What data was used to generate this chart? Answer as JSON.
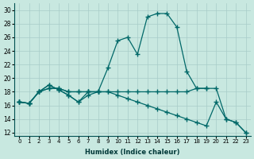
{
  "xlabel": "Humidex (Indice chaleur)",
  "ylabel": "",
  "background_color": "#c8e8e0",
  "grid_color": "#a8ccc8",
  "line_color": "#006868",
  "xlim": [
    -0.5,
    23.5
  ],
  "ylim": [
    11.5,
    31
  ],
  "yticks": [
    12,
    14,
    16,
    18,
    20,
    22,
    24,
    26,
    28,
    30
  ],
  "xticks": [
    0,
    1,
    2,
    3,
    4,
    5,
    6,
    7,
    8,
    9,
    10,
    11,
    12,
    13,
    14,
    15,
    16,
    17,
    18,
    19,
    20,
    21,
    22,
    23
  ],
  "line1": {
    "x": [
      0,
      1,
      2,
      3,
      4,
      5,
      6,
      7,
      8
    ],
    "y": [
      16.5,
      16.3,
      18.0,
      19.0,
      18.3,
      17.5,
      16.5,
      17.5,
      18.0
    ]
  },
  "line2": {
    "x": [
      0,
      1,
      2,
      3,
      4,
      5,
      6,
      7,
      8,
      9,
      10,
      11,
      12,
      13,
      14,
      15,
      16,
      17,
      18,
      19
    ],
    "y": [
      16.5,
      16.3,
      18.0,
      18.5,
      18.5,
      18.0,
      18.0,
      18.0,
      18.0,
      18.0,
      18.0,
      18.0,
      18.0,
      18.0,
      18.0,
      18.0,
      18.0,
      18.0,
      18.5,
      18.5
    ]
  },
  "line3": {
    "x": [
      0,
      1,
      2,
      3,
      4,
      5,
      6,
      7,
      8,
      9,
      10,
      11,
      12,
      13,
      14,
      15,
      16,
      17,
      18,
      19,
      20,
      21,
      22,
      23
    ],
    "y": [
      16.5,
      16.3,
      18.0,
      18.5,
      18.5,
      18.0,
      18.0,
      18.0,
      18.0,
      18.0,
      17.5,
      17.0,
      16.5,
      16.0,
      15.5,
      15.0,
      14.5,
      14.0,
      13.5,
      13.0,
      16.5,
      14.0,
      13.5,
      12.0
    ]
  },
  "line4": {
    "x": [
      0,
      1,
      2,
      3,
      4,
      5,
      6,
      7,
      8,
      9,
      10,
      11,
      12,
      13,
      14,
      15,
      16,
      17,
      18,
      19,
      20,
      21,
      22,
      23
    ],
    "y": [
      16.5,
      16.3,
      18.0,
      19.0,
      18.3,
      17.5,
      16.5,
      18.0,
      18.0,
      21.5,
      25.5,
      26.0,
      23.5,
      29.0,
      29.5,
      29.5,
      27.5,
      21.0,
      18.5,
      18.5,
      18.5,
      14.0,
      13.5,
      12.0
    ]
  }
}
